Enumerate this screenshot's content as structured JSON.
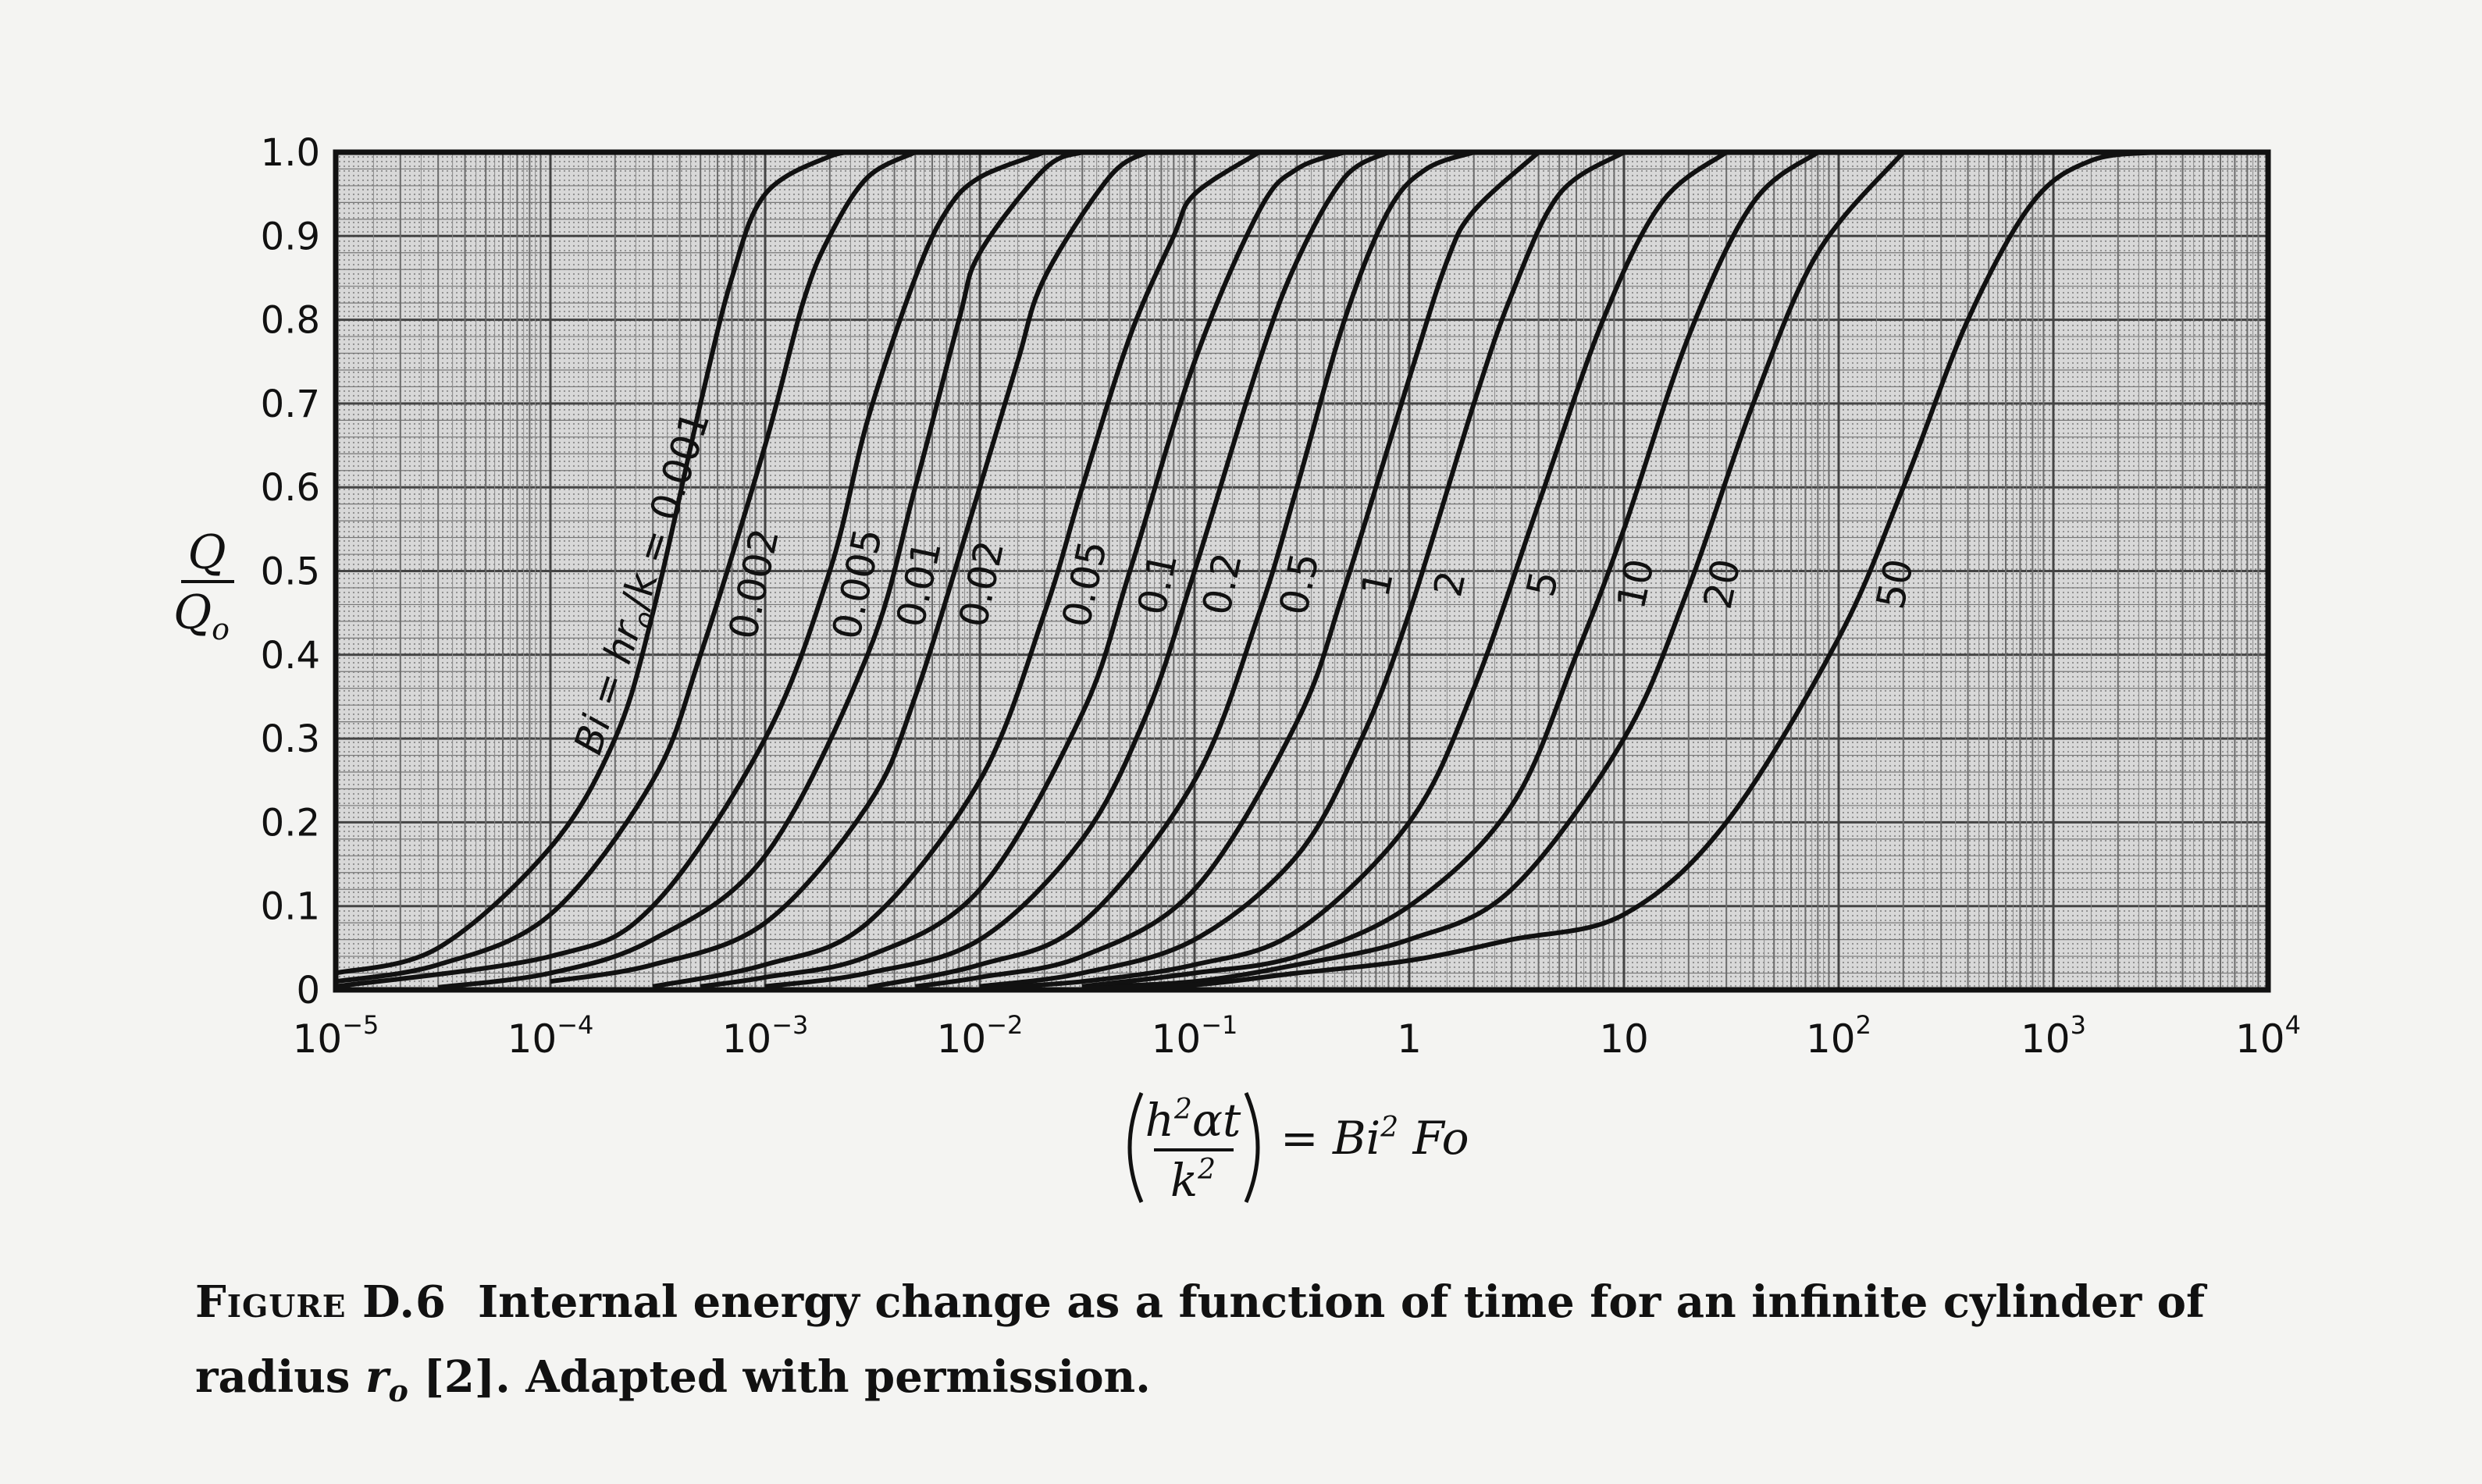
{
  "chart_data": {
    "type": "line",
    "x_scale": "log",
    "xlim": [
      1e-05,
      10000
    ],
    "ylim": [
      0,
      1.0
    ],
    "grid": true,
    "y_ticks": [
      "0",
      "0.1",
      "0.2",
      "0.3",
      "0.4",
      "0.5",
      "0.6",
      "0.7",
      "0.8",
      "0.9",
      "1.0"
    ],
    "x_ticks": [
      {
        "value": 1e-05,
        "base": "10",
        "exp": "−5"
      },
      {
        "value": 0.0001,
        "base": "10",
        "exp": "−4"
      },
      {
        "value": 0.001,
        "base": "10",
        "exp": "−3"
      },
      {
        "value": 0.01,
        "base": "10",
        "exp": "−2"
      },
      {
        "value": 0.1,
        "base": "10",
        "exp": "−1"
      },
      {
        "value": 1,
        "base": "1",
        "exp": ""
      },
      {
        "value": 10,
        "base": "10",
        "exp": ""
      },
      {
        "value": 100,
        "base": "10",
        "exp": "2"
      },
      {
        "value": 1000,
        "base": "10",
        "exp": "3"
      },
      {
        "value": 10000,
        "base": "10",
        "exp": "4"
      }
    ],
    "ylabel_num": "Q",
    "ylabel_den": "Q",
    "ylabel_den_sub": "o",
    "xlabel_num": "h",
    "xlabel_num_sup": "2",
    "xlabel_num_rest": "αt",
    "xlabel_den": "k",
    "xlabel_den_sup": "2",
    "xlabel_rhs_a": "= Bi",
    "xlabel_rhs_sup": "2",
    "xlabel_rhs_b": " Fo",
    "series": [
      {
        "label": "Bi = hr",
        "label_sub": "o",
        "label_tail": "/k = 0.001",
        "bi": 0.001,
        "points": [
          [
            1e-05,
            0.02
          ],
          [
            3e-05,
            0.05
          ],
          [
            0.0001,
            0.17
          ],
          [
            0.0002,
            0.3
          ],
          [
            0.0003,
            0.45
          ],
          [
            0.0005,
            0.7
          ],
          [
            0.0007,
            0.85
          ],
          [
            0.001,
            0.95
          ],
          [
            0.002,
            0.995
          ],
          [
            0.003,
            1.0
          ]
        ]
      },
      {
        "label": "0.002",
        "bi": 0.002,
        "points": [
          [
            1e-05,
            0.01
          ],
          [
            3e-05,
            0.03
          ],
          [
            0.0001,
            0.09
          ],
          [
            0.0003,
            0.25
          ],
          [
            0.0005,
            0.4
          ],
          [
            0.001,
            0.65
          ],
          [
            0.0015,
            0.82
          ],
          [
            0.002,
            0.9
          ],
          [
            0.003,
            0.97
          ],
          [
            0.005,
            1.0
          ]
        ]
      },
      {
        "label": "0.005",
        "bi": 0.005,
        "points": [
          [
            1e-05,
            0.004
          ],
          [
            0.0001,
            0.04
          ],
          [
            0.0003,
            0.1
          ],
          [
            0.001,
            0.3
          ],
          [
            0.002,
            0.5
          ],
          [
            0.003,
            0.68
          ],
          [
            0.005,
            0.85
          ],
          [
            0.007,
            0.93
          ],
          [
            0.01,
            0.97
          ],
          [
            0.02,
            1.0
          ]
        ]
      },
      {
        "label": "0.01",
        "bi": 0.01,
        "points": [
          [
            3e-05,
            0.003
          ],
          [
            0.0001,
            0.02
          ],
          [
            0.0003,
            0.06
          ],
          [
            0.001,
            0.16
          ],
          [
            0.003,
            0.4
          ],
          [
            0.005,
            0.6
          ],
          [
            0.008,
            0.8
          ],
          [
            0.01,
            0.88
          ],
          [
            0.02,
            0.98
          ],
          [
            0.03,
            1.0
          ]
        ]
      },
      {
        "label": "0.02",
        "bi": 0.02,
        "points": [
          [
            0.0001,
            0.01
          ],
          [
            0.0003,
            0.03
          ],
          [
            0.001,
            0.08
          ],
          [
            0.003,
            0.22
          ],
          [
            0.005,
            0.35
          ],
          [
            0.01,
            0.6
          ],
          [
            0.015,
            0.75
          ],
          [
            0.02,
            0.85
          ],
          [
            0.04,
            0.97
          ],
          [
            0.06,
            1.0
          ]
        ]
      },
      {
        "label": "0.05",
        "bi": 0.05,
        "points": [
          [
            0.0003,
            0.004
          ],
          [
            0.001,
            0.03
          ],
          [
            0.003,
            0.08
          ],
          [
            0.01,
            0.25
          ],
          [
            0.02,
            0.45
          ],
          [
            0.03,
            0.6
          ],
          [
            0.05,
            0.78
          ],
          [
            0.08,
            0.9
          ],
          [
            0.1,
            0.95
          ],
          [
            0.2,
            1.0
          ]
        ]
      },
      {
        "label": "0.1",
        "bi": 0.1,
        "points": [
          [
            0.0005,
            0.004
          ],
          [
            0.001,
            0.015
          ],
          [
            0.003,
            0.04
          ],
          [
            0.01,
            0.12
          ],
          [
            0.03,
            0.33
          ],
          [
            0.05,
            0.5
          ],
          [
            0.1,
            0.75
          ],
          [
            0.2,
            0.93
          ],
          [
            0.3,
            0.98
          ],
          [
            0.5,
            1.0
          ]
        ]
      },
      {
        "label": "0.2",
        "bi": 0.2,
        "points": [
          [
            0.001,
            0.004
          ],
          [
            0.003,
            0.02
          ],
          [
            0.01,
            0.06
          ],
          [
            0.03,
            0.18
          ],
          [
            0.06,
            0.33
          ],
          [
            0.1,
            0.5
          ],
          [
            0.2,
            0.75
          ],
          [
            0.3,
            0.87
          ],
          [
            0.5,
            0.97
          ],
          [
            0.8,
            1.0
          ]
        ]
      },
      {
        "label": "0.5",
        "bi": 0.5,
        "points": [
          [
            0.003,
            0.003
          ],
          [
            0.01,
            0.03
          ],
          [
            0.03,
            0.08
          ],
          [
            0.1,
            0.25
          ],
          [
            0.2,
            0.45
          ],
          [
            0.3,
            0.6
          ],
          [
            0.5,
            0.8
          ],
          [
            0.8,
            0.93
          ],
          [
            1.2,
            0.98
          ],
          [
            2,
            1.0
          ]
        ]
      },
      {
        "label": "1",
        "bi": 1,
        "points": [
          [
            0.005,
            0.004
          ],
          [
            0.01,
            0.015
          ],
          [
            0.03,
            0.04
          ],
          [
            0.1,
            0.12
          ],
          [
            0.3,
            0.32
          ],
          [
            0.5,
            0.48
          ],
          [
            1,
            0.73
          ],
          [
            1.5,
            0.87
          ],
          [
            2,
            0.93
          ],
          [
            4,
            1.0
          ]
        ]
      },
      {
        "label": "2",
        "bi": 2,
        "points": [
          [
            0.01,
            0.004
          ],
          [
            0.03,
            0.02
          ],
          [
            0.1,
            0.06
          ],
          [
            0.3,
            0.16
          ],
          [
            0.6,
            0.3
          ],
          [
            1,
            0.45
          ],
          [
            2,
            0.7
          ],
          [
            3,
            0.83
          ],
          [
            5,
            0.95
          ],
          [
            10,
            1.0
          ]
        ]
      },
      {
        "label": "5",
        "bi": 5,
        "points": [
          [
            0.01,
            0.002
          ],
          [
            0.03,
            0.01
          ],
          [
            0.1,
            0.03
          ],
          [
            0.3,
            0.07
          ],
          [
            1,
            0.2
          ],
          [
            2,
            0.36
          ],
          [
            4,
            0.58
          ],
          [
            8,
            0.8
          ],
          [
            15,
            0.94
          ],
          [
            30,
            1.0
          ]
        ]
      },
      {
        "label": "10",
        "bi": 10,
        "points": [
          [
            0.03,
            0.004
          ],
          [
            0.1,
            0.02
          ],
          [
            0.3,
            0.04
          ],
          [
            1,
            0.1
          ],
          [
            3,
            0.22
          ],
          [
            6,
            0.4
          ],
          [
            10,
            0.55
          ],
          [
            20,
            0.78
          ],
          [
            40,
            0.94
          ],
          [
            80,
            1.0
          ]
        ]
      },
      {
        "label": "20",
        "bi": 20,
        "points": [
          [
            0.03,
            0.003
          ],
          [
            0.1,
            0.01
          ],
          [
            0.3,
            0.03
          ],
          [
            1,
            0.06
          ],
          [
            3,
            0.12
          ],
          [
            10,
            0.3
          ],
          [
            20,
            0.48
          ],
          [
            40,
            0.7
          ],
          [
            80,
            0.88
          ],
          [
            200,
            1.0
          ]
        ]
      },
      {
        "label": "50",
        "bi": 50,
        "points": [
          [
            0.03,
            0.002
          ],
          [
            0.1,
            0.006
          ],
          [
            0.3,
            0.02
          ],
          [
            1,
            0.035
          ],
          [
            3,
            0.06
          ],
          [
            10,
            0.09
          ],
          [
            30,
            0.2
          ],
          [
            100,
            0.42
          ],
          [
            200,
            0.6
          ],
          [
            400,
            0.8
          ],
          [
            800,
            0.94
          ],
          [
            1500,
            0.99
          ],
          [
            3000,
            1.0
          ]
        ]
      }
    ]
  },
  "caption": {
    "figure_number": "Figure D.6",
    "text_a": "Internal energy change as a function of time for an infinite cylinder of radius ",
    "text_var": "r",
    "text_var_sub": "o",
    "text_b": " [2]. Adapted with permission."
  }
}
